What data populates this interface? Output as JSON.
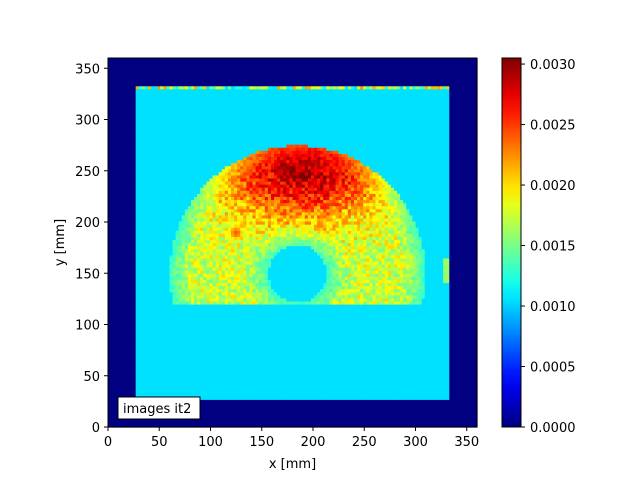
{
  "chart_data": {
    "type": "heatmap",
    "colormap": "jet",
    "xlabel": "x [mm]",
    "ylabel": "y [mm]",
    "xlim": [
      0,
      360
    ],
    "ylim": [
      0,
      360
    ],
    "x_ticks": [
      0,
      50,
      100,
      150,
      200,
      250,
      300,
      350
    ],
    "y_ticks": [
      0,
      50,
      100,
      150,
      200,
      250,
      300,
      350
    ],
    "x_tick_labels": [
      "0",
      "50",
      "100",
      "150",
      "200",
      "250",
      "300",
      "350"
    ],
    "y_tick_labels": [
      "0",
      "50",
      "100",
      "150",
      "200",
      "250",
      "300",
      "350"
    ],
    "colorbar": {
      "min": 0.0,
      "max": 0.00305,
      "ticks": [
        0.0,
        0.0005,
        0.001,
        0.0015,
        0.002,
        0.0025,
        0.003
      ],
      "tick_labels": [
        "0.0000",
        "0.0005",
        "0.0010",
        "0.0015",
        "0.0020",
        "0.0025",
        "0.0030"
      ]
    },
    "regions": {
      "outside_value": 0.0,
      "inner_square": {
        "x": [
          27,
          333
        ],
        "y": [
          27,
          333
        ],
        "value": 0.00105
      },
      "arc": {
        "center": [
          185,
          150
        ],
        "r_inner": 28,
        "r_outer": 125,
        "y_min": 120,
        "peak_center": [
          190,
          250
        ],
        "peak_value": 0.0029
      },
      "hotspot": {
        "center": [
          125,
          190
        ],
        "value": 0.0024
      }
    },
    "annotation": "images it2"
  }
}
